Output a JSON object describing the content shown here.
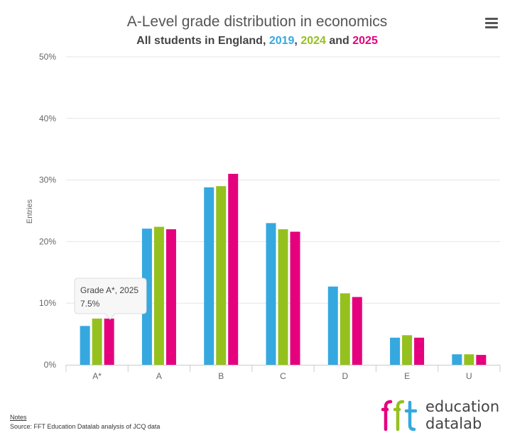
{
  "chart_data": {
    "type": "bar",
    "title": "A-Level grade distribution in economics",
    "subtitle": {
      "prefix": "All students in England, ",
      "sep1": ", ",
      "sep2": " and "
    },
    "categories": [
      "A*",
      "A",
      "B",
      "C",
      "D",
      "E",
      "U"
    ],
    "series": [
      {
        "name": "2019",
        "color": "#35a8e0",
        "values": [
          6.3,
          22.1,
          28.8,
          23.0,
          12.7,
          4.4,
          1.7
        ]
      },
      {
        "name": "2024",
        "color": "#95c11f",
        "values": [
          7.5,
          22.4,
          29.0,
          22.0,
          11.6,
          4.8,
          1.7
        ]
      },
      {
        "name": "2025",
        "color": "#e5007e",
        "values": [
          7.5,
          22.0,
          31.0,
          21.6,
          11.0,
          4.4,
          1.6
        ]
      }
    ],
    "ylabel": "Entries",
    "xlabel": "",
    "ylim": [
      0,
      50
    ],
    "yticks": [
      0,
      10,
      20,
      30,
      40,
      50
    ],
    "ytick_suffix": "%",
    "grid": true,
    "legend": "none",
    "tooltip": {
      "line1": "Grade A*, 2025",
      "line2": "7.5%"
    }
  },
  "notes": {
    "link": "Notes",
    "source": "Source: FFT Education Datalab analysis of JCQ data"
  },
  "logo": {
    "mark": "fft",
    "line1": "education",
    "line2": "datalab"
  },
  "menu": {
    "icon": "hamburger-menu-icon"
  }
}
